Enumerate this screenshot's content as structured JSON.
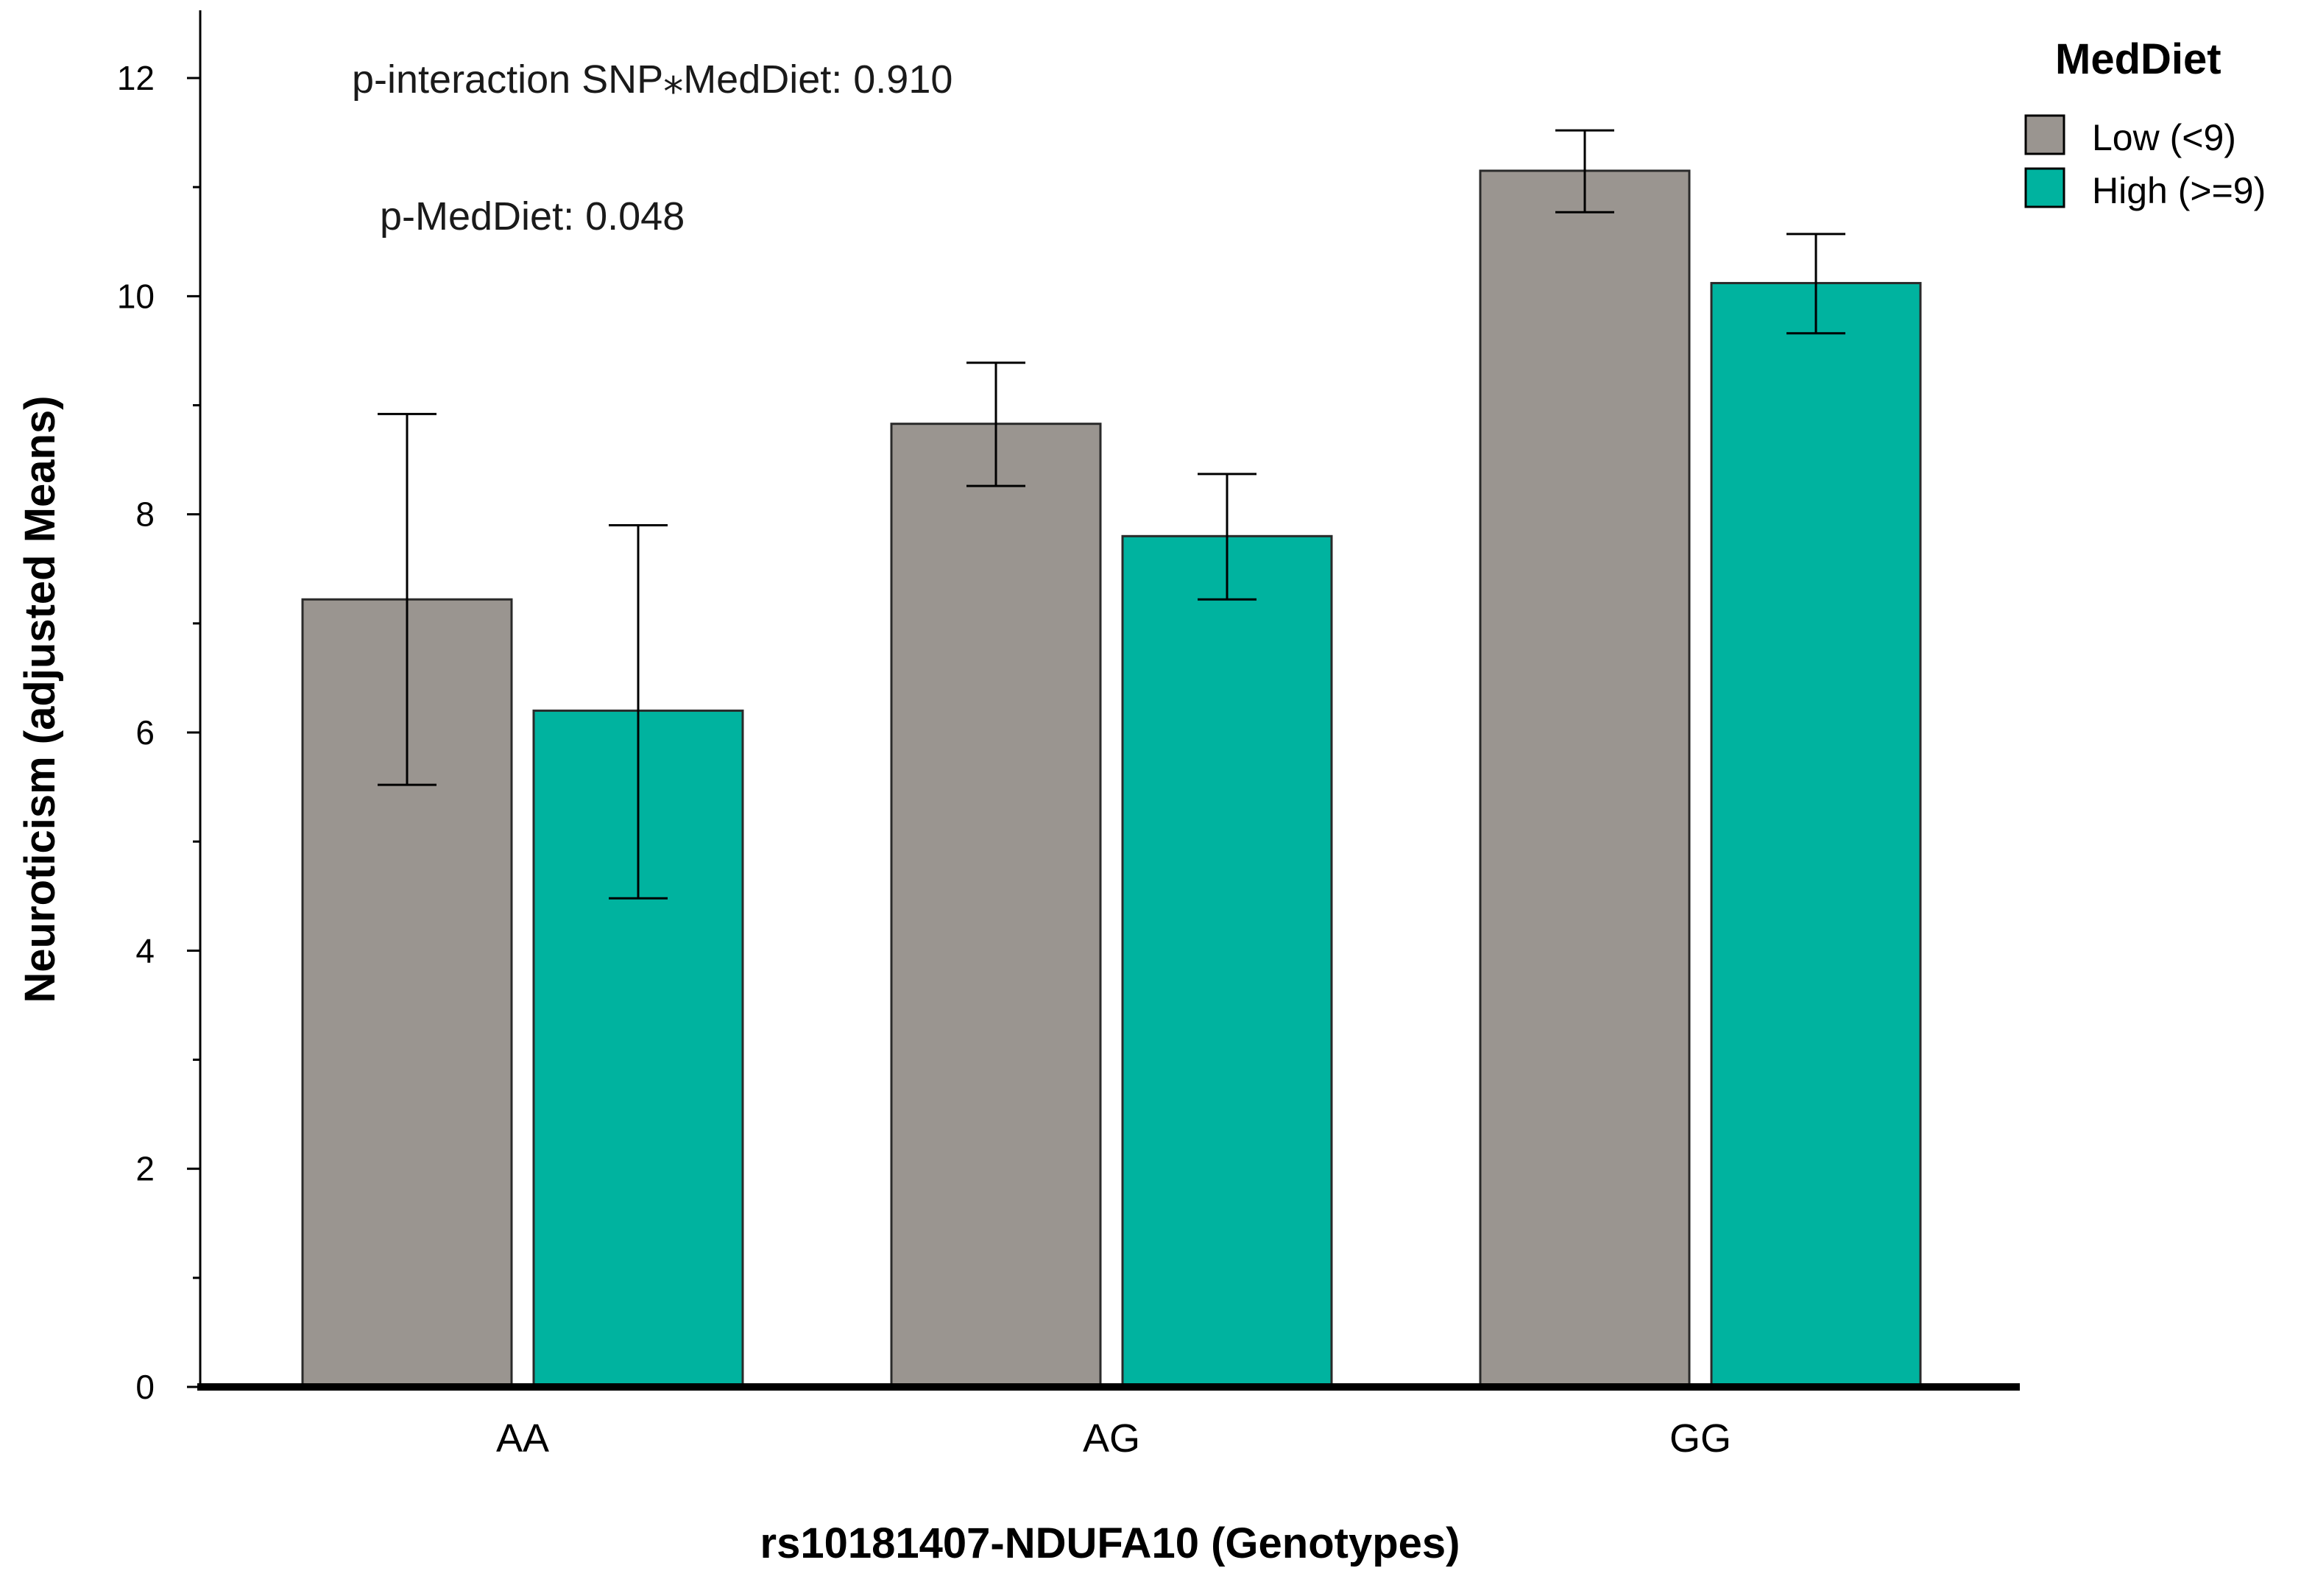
{
  "chart_data": {
    "type": "bar",
    "xlabel": "rs10181407-NDUFA10 (Genotypes)",
    "ylabel": "Neuroticism (adjusted Means)",
    "ylim": [
      0,
      12
    ],
    "yticks": [
      "0",
      "2",
      "4",
      "6",
      "8",
      "10",
      "12"
    ],
    "categories": [
      "AA",
      "AG",
      "GG"
    ],
    "series": [
      {
        "name": "Low (<9)",
        "color": "#9a9590",
        "values": [
          7.22,
          8.83,
          11.15
        ],
        "err_low": [
          5.52,
          8.26,
          10.77
        ],
        "err_high": [
          8.92,
          9.39,
          11.52
        ]
      },
      {
        "name": "High (>=9)",
        "color": "#00b39f",
        "values": [
          6.2,
          7.8,
          10.12
        ],
        "err_low": [
          4.48,
          7.22,
          9.66
        ],
        "err_high": [
          7.9,
          8.37,
          10.57
        ]
      }
    ],
    "legend": {
      "title": "MedDiet",
      "position": "top-right"
    },
    "annotations": [
      "p-interaction SNP⁎MedDiet: 0.910",
      "p-MedDiet: 0.048"
    ],
    "grid": false
  }
}
